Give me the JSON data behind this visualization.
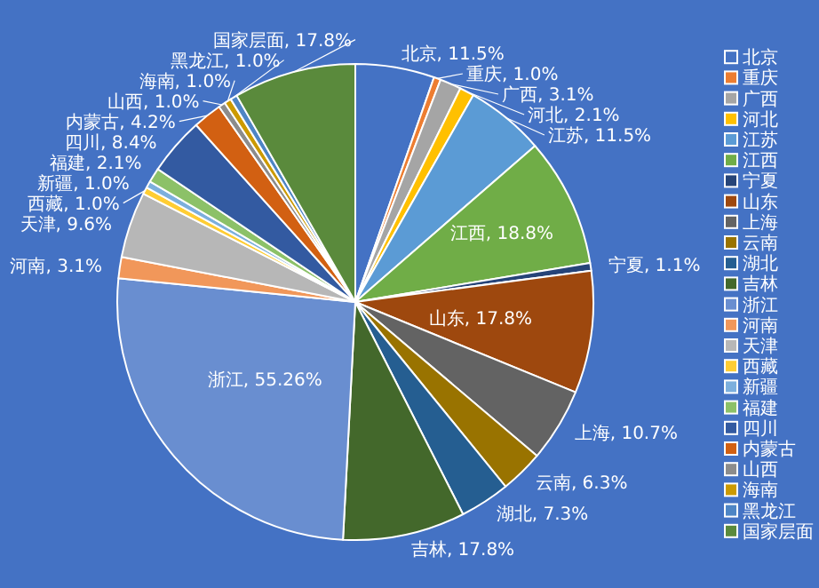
{
  "chart_data": {
    "type": "pie",
    "categories": [
      "北京",
      "重庆",
      "广西",
      "河北",
      "江苏",
      "江西",
      "宁夏",
      "山东",
      "上海",
      "云南",
      "湖北",
      "吉林",
      "浙江",
      "河南",
      "天津",
      "西藏",
      "新疆",
      "福建",
      "四川",
      "内蒙古",
      "山西",
      "海南",
      "黑龙江",
      "国家层面"
    ],
    "values": [
      11.5,
      1.0,
      3.1,
      2.1,
      11.5,
      18.8,
      1.1,
      17.8,
      10.7,
      6.3,
      7.3,
      17.8,
      55.26,
      3.1,
      9.6,
      1.0,
      1.0,
      2.1,
      8.4,
      4.2,
      1.0,
      1.0,
      1.0,
      17.8
    ],
    "value_labels": [
      "北京, 11.5%",
      "重庆, 1.0%",
      "广西, 3.1%",
      "河北, 2.1%",
      "江苏, 11.5%",
      "江西, 18.8%",
      "宁夏, 1.1%",
      "山东, 17.8%",
      "上海, 10.7%",
      "云南, 6.3%",
      "湖北, 7.3%",
      "吉林, 17.8%",
      "浙江, 55.26%",
      "河南, 3.1%",
      "天津, 9.6%",
      "西藏, 1.0%",
      "新疆, 1.0%",
      "福建, 2.1%",
      "四川, 8.4%",
      "内蒙古, 4.2%",
      "山西, 1.0%",
      "海南, 1.0%",
      "黑龙江, 1.0%",
      "国家层面, 17.8%"
    ],
    "colors": [
      "#4472c4",
      "#ed7d31",
      "#a5a5a5",
      "#ffc000",
      "#5b9bd5",
      "#70ad47",
      "#264478",
      "#9e480e",
      "#636363",
      "#997300",
      "#255e91",
      "#43682b",
      "#698ed0",
      "#f1975a",
      "#b7b7b7",
      "#ffcd33",
      "#7cafdd",
      "#8cc168",
      "#335aa1",
      "#d26012",
      "#8c8c8c",
      "#cc9a00",
      "#4e85c5",
      "#5a8a3c"
    ],
    "legend": "right"
  }
}
